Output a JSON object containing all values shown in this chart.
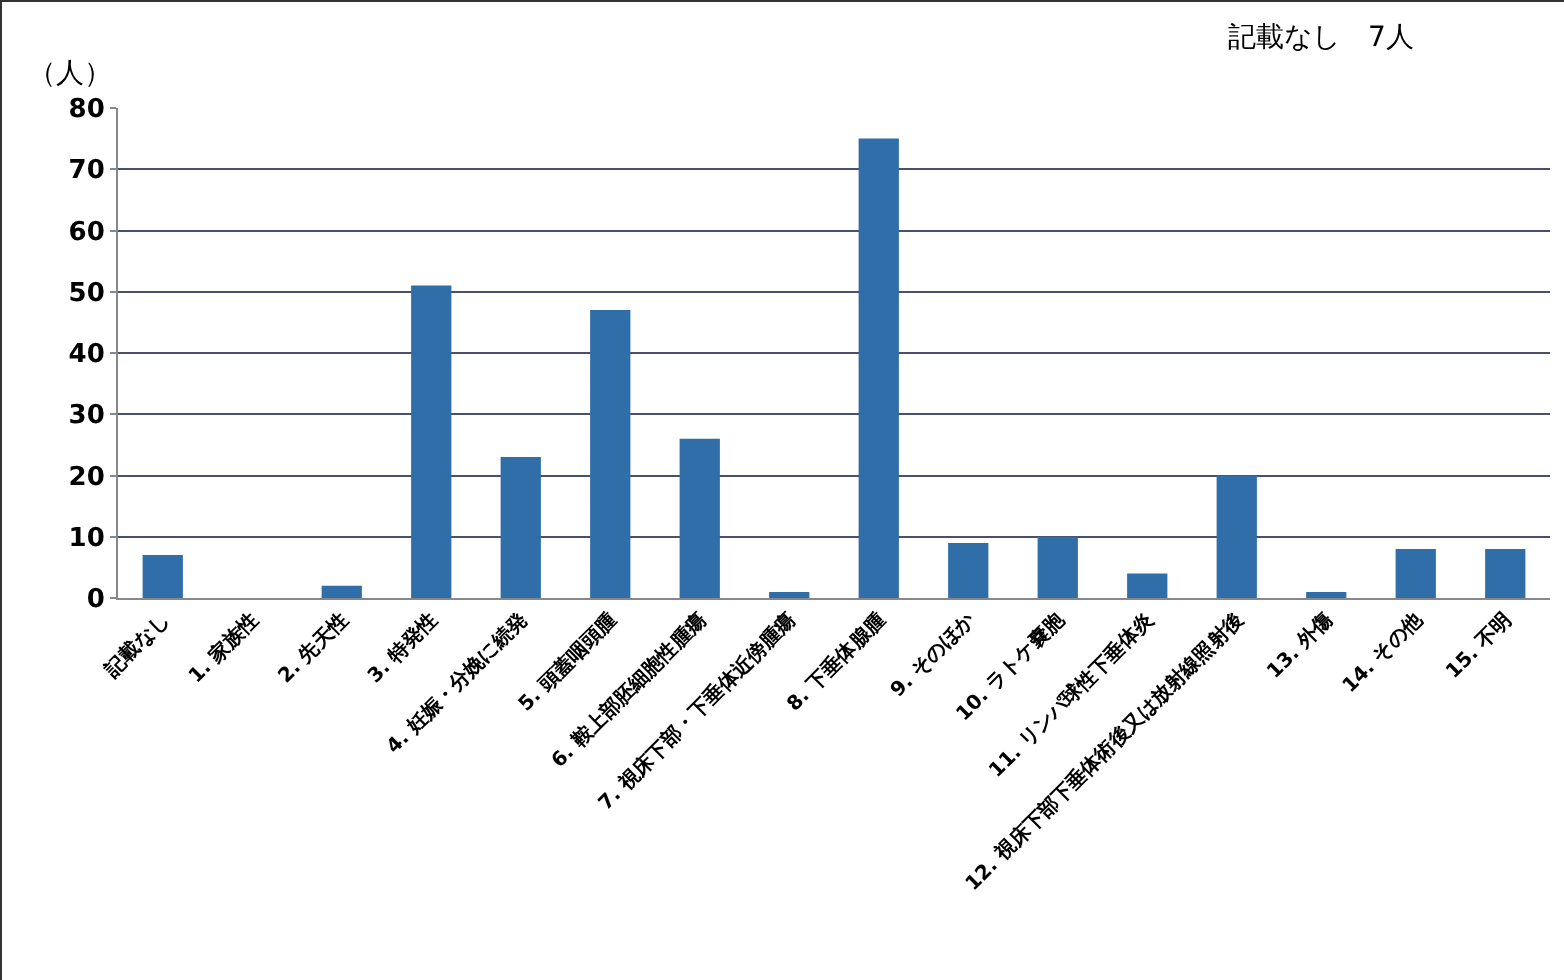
{
  "chart_data": {
    "type": "bar",
    "ylabel": "（人）",
    "annotations": [
      "記載なし　7人"
    ],
    "categories": [
      "記載なし",
      "1. 家族性",
      "2. 先天性",
      "3. 特発性",
      "4. 妊娠・分娩に続発",
      "5. 頭蓋咽頭腫",
      "6. 鞍上部胚細胞性腫瘍",
      "7. 視床下部・下垂体近傍腫瘍",
      "8. 下垂体腺腫",
      "9. そのほか",
      "10. ラトケ嚢胞",
      "11. リンパ球性下垂体炎",
      "12. 視床下部下垂体術後又は放射線照射後",
      "13. 外傷",
      "14. その他",
      "15. 不明"
    ],
    "values": [
      7,
      0,
      2,
      51,
      23,
      47,
      26,
      1,
      75,
      9,
      10,
      4,
      20,
      1,
      8,
      8
    ],
    "color": "#2f6ea8",
    "ylim": [
      0,
      80
    ],
    "yticks": [
      0,
      10,
      20,
      30,
      40,
      50,
      60,
      70,
      80
    ],
    "grid": "y"
  }
}
